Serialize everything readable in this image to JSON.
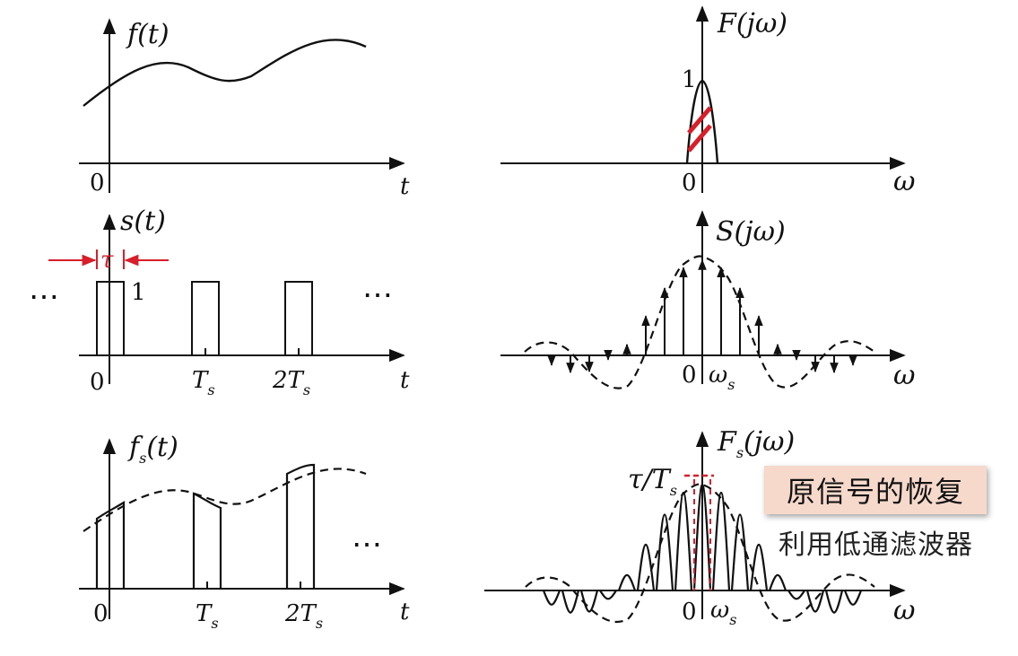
{
  "panels": {
    "f": {
      "ylabel": "f(t)",
      "xlabel": "t",
      "origin": "0"
    },
    "F": {
      "ylabel": "F(jω)",
      "xlabel": "ω",
      "origin": "0",
      "peak": "1"
    },
    "s": {
      "ylabel": "s(t)",
      "xlabel": "t",
      "origin": "0",
      "height": "1",
      "width_label": "τ",
      "ticks": [
        "T",
        "2T"
      ],
      "tick_sub": "s",
      "ellipsis": "⋯"
    },
    "S": {
      "ylabel": "S(jω)",
      "xlabel": "ω",
      "origin": "0",
      "omega_s": "ω",
      "omega_sub": "s"
    },
    "fs": {
      "ylabel": "f",
      "ylabel_sub": "s",
      "ylabel_arg": "(t)",
      "xlabel": "t",
      "origin": "0",
      "ticks": [
        "T",
        "2T"
      ],
      "tick_sub": "s",
      "ellipsis": "⋯"
    },
    "Fs": {
      "ylabel": "F",
      "ylabel_sub": "s",
      "ylabel_arg": "(jω)",
      "xlabel": "ω",
      "origin": "0",
      "peak_label": "τ/T",
      "peak_sub": "s",
      "omega_s": "ω",
      "omega_sub": "s"
    }
  },
  "note": {
    "title": "原信号的恢复",
    "subtitle": "利用低通滤波器"
  },
  "colors": {
    "ink": "#111111",
    "annotation": "#d81e2a",
    "note_bg": "#f6d9cb"
  }
}
